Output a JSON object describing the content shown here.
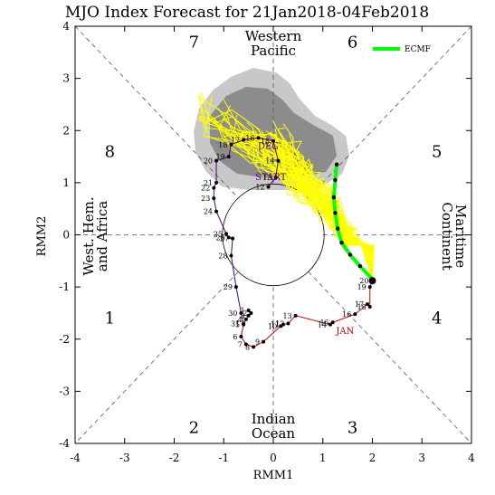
{
  "chart_data": {
    "type": "line",
    "title": "MJO Index Forecast for 21Jan2018-04Feb2018",
    "xlabel": "RMM1",
    "ylabel": "RMM2",
    "xlim": [
      -4,
      4
    ],
    "ylim": [
      -4,
      4
    ],
    "x_ticks": [
      "-4",
      "-3",
      "-2",
      "-1",
      "0",
      "1",
      "2",
      "3",
      "4"
    ],
    "y_ticks": [
      "-4",
      "-3",
      "-2",
      "-1",
      "0",
      "1",
      "2",
      "3",
      "4"
    ],
    "phase_labels": [
      {
        "text": "1",
        "x": -3.3,
        "y": -1.6
      },
      {
        "text": "2",
        "x": -1.6,
        "y": -3.7
      },
      {
        "text": "3",
        "x": 1.6,
        "y": -3.7
      },
      {
        "text": "4",
        "x": 3.3,
        "y": -1.6
      },
      {
        "text": "5",
        "x": 3.3,
        "y": 1.6
      },
      {
        "text": "6",
        "x": 1.6,
        "y": 3.7
      },
      {
        "text": "7",
        "x": -1.6,
        "y": 3.7
      },
      {
        "text": "8",
        "x": -3.3,
        "y": 1.6
      }
    ],
    "region_labels": {
      "western_pacific": [
        "Western",
        "Pacific"
      ],
      "indian_ocean": [
        "Indian",
        "Ocean"
      ],
      "west_hem": [
        "West. Hem.",
        "and Africa"
      ],
      "maritime": [
        "Maritime",
        "Continent"
      ]
    },
    "legend": {
      "entries": [
        {
          "name": "ECMF",
          "color": "#00ff00"
        }
      ],
      "placement": "top-right"
    },
    "month_labels": [
      {
        "text": "DEC",
        "x": -0.1,
        "y": 1.65,
        "color": "#4b0082"
      },
      {
        "text": "JAN",
        "x": 1.45,
        "y": -1.9,
        "color": "#cc0000"
      },
      {
        "text": "START",
        "x": -0.05,
        "y": 1.05,
        "color": "#4b0082"
      }
    ],
    "series": [
      {
        "name": "December",
        "color": "#4b0082",
        "points": [
          {
            "day": "12",
            "x": -0.1,
            "y": 0.92
          },
          {
            "day": "13",
            "x": 0.05,
            "y": 1.1
          },
          {
            "day": "14",
            "x": 0.1,
            "y": 1.42
          },
          {
            "day": "15",
            "x": 0.0,
            "y": 1.8
          },
          {
            "day": "16",
            "x": -0.3,
            "y": 1.86
          },
          {
            "day": "17",
            "x": -0.6,
            "y": 1.82
          },
          {
            "day": "18",
            "x": -0.85,
            "y": 1.73
          },
          {
            "day": "19",
            "x": -0.9,
            "y": 1.5
          },
          {
            "day": "20",
            "x": -1.15,
            "y": 1.42
          },
          {
            "day": "21",
            "x": -1.15,
            "y": 1.0
          },
          {
            "day": "22",
            "x": -1.2,
            "y": 0.9
          },
          {
            "day": "23",
            "x": -1.2,
            "y": 0.7
          },
          {
            "day": "24",
            "x": -1.15,
            "y": 0.45
          },
          {
            "day": "25",
            "x": -0.95,
            "y": 0.02
          },
          {
            "day": "26",
            "x": -0.9,
            "y": -0.05
          },
          {
            "day": "27",
            "x": -0.82,
            "y": -0.07
          },
          {
            "day": "28",
            "x": -0.85,
            "y": -0.4
          },
          {
            "day": "29",
            "x": -0.75,
            "y": -1.0
          },
          {
            "day": "30",
            "x": -0.65,
            "y": -1.5
          },
          {
            "day": "31",
            "x": -0.6,
            "y": -1.7
          }
        ]
      },
      {
        "name": "January",
        "color": "#cc0000",
        "points": [
          {
            "day": "1",
            "x": -0.5,
            "y": -1.45
          },
          {
            "day": "2",
            "x": -0.45,
            "y": -1.5
          },
          {
            "day": "3",
            "x": -0.5,
            "y": -1.55
          },
          {
            "day": "4",
            "x": -0.55,
            "y": -1.62
          },
          {
            "day": "5",
            "x": -0.6,
            "y": -1.72
          },
          {
            "day": "6",
            "x": -0.65,
            "y": -1.95
          },
          {
            "day": "7",
            "x": -0.55,
            "y": -2.1
          },
          {
            "day": "8",
            "x": -0.4,
            "y": -2.15
          },
          {
            "day": "9",
            "x": -0.2,
            "y": -2.05
          },
          {
            "day": "10",
            "x": 0.15,
            "y": -1.75
          },
          {
            "day": "11",
            "x": 0.2,
            "y": -1.72
          },
          {
            "day": "12",
            "x": 0.3,
            "y": -1.7
          },
          {
            "day": "13",
            "x": 0.45,
            "y": -1.55
          },
          {
            "day": "14",
            "x": 1.15,
            "y": -1.72
          },
          {
            "day": "15",
            "x": 1.2,
            "y": -1.68
          },
          {
            "day": "16",
            "x": 1.65,
            "y": -1.52
          },
          {
            "day": "17",
            "x": 1.9,
            "y": -1.33
          },
          {
            "day": "18",
            "x": 1.95,
            "y": -1.38
          },
          {
            "day": "19",
            "x": 1.95,
            "y": -1.0
          },
          {
            "day": "20",
            "x": 2.0,
            "y": -0.88
          }
        ]
      },
      {
        "name": "ECMF",
        "color": "#00ff00",
        "points": [
          {
            "x": 2.0,
            "y": -0.85
          },
          {
            "x": 1.75,
            "y": -0.6
          },
          {
            "x": 1.55,
            "y": -0.38
          },
          {
            "x": 1.38,
            "y": -0.15
          },
          {
            "x": 1.3,
            "y": 0.12
          },
          {
            "x": 1.25,
            "y": 0.42
          },
          {
            "x": 1.22,
            "y": 0.72
          },
          {
            "x": 1.25,
            "y": 1.05
          },
          {
            "x": 1.28,
            "y": 1.35
          }
        ]
      }
    ]
  }
}
